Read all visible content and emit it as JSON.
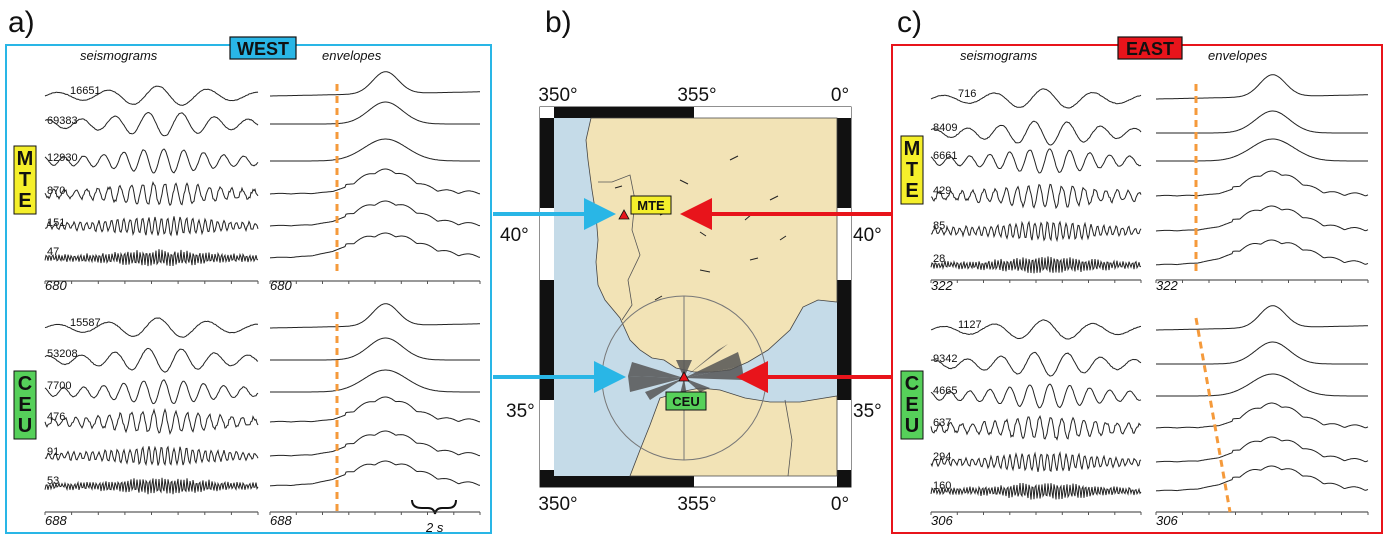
{
  "colors": {
    "west": "#29b6e6",
    "east": "#e8141b",
    "mte_box": "#f5ef2b",
    "ceu_box": "#56d05a",
    "land": "#f2e3b6",
    "sea": "#c5dbe8",
    "onset": "#f59a3b"
  },
  "panels": {
    "a": {
      "letter": "a)",
      "tag": "WEST",
      "headers": [
        "seismograms",
        "envelopes"
      ],
      "mte": {
        "letters": [
          "M",
          "T",
          "E"
        ],
        "amplitudes": [
          "16651",
          "69383",
          "12930",
          "870",
          "151",
          "47"
        ],
        "foot_left": "680",
        "foot_right": "680"
      },
      "ceu": {
        "letters": [
          "C",
          "E",
          "U"
        ],
        "amplitudes": [
          "15587",
          "53208",
          "7700",
          "476",
          "91",
          "53"
        ],
        "foot_left": "688",
        "foot_right": "688"
      },
      "scale_label": "2 s"
    },
    "b": {
      "letter": "b)",
      "lon_labels": [
        "350°",
        "355°",
        "0°"
      ],
      "lat_labels": [
        "40°",
        "35°"
      ],
      "stations": [
        "MTE",
        "CEU"
      ]
    },
    "c": {
      "letter": "c)",
      "tag": "EAST",
      "headers": [
        "seismograms",
        "envelopes"
      ],
      "mte": {
        "letters": [
          "M",
          "T",
          "E"
        ],
        "amplitudes": [
          "716",
          "8409",
          "6661",
          "429",
          "85",
          "28"
        ],
        "foot_left": "322",
        "foot_right": "322"
      },
      "ceu": {
        "letters": [
          "C",
          "E",
          "U"
        ],
        "amplitudes": [
          "1127",
          "9342",
          "4665",
          "637",
          "294",
          "160"
        ],
        "foot_left": "306",
        "foot_right": "306"
      }
    }
  }
}
